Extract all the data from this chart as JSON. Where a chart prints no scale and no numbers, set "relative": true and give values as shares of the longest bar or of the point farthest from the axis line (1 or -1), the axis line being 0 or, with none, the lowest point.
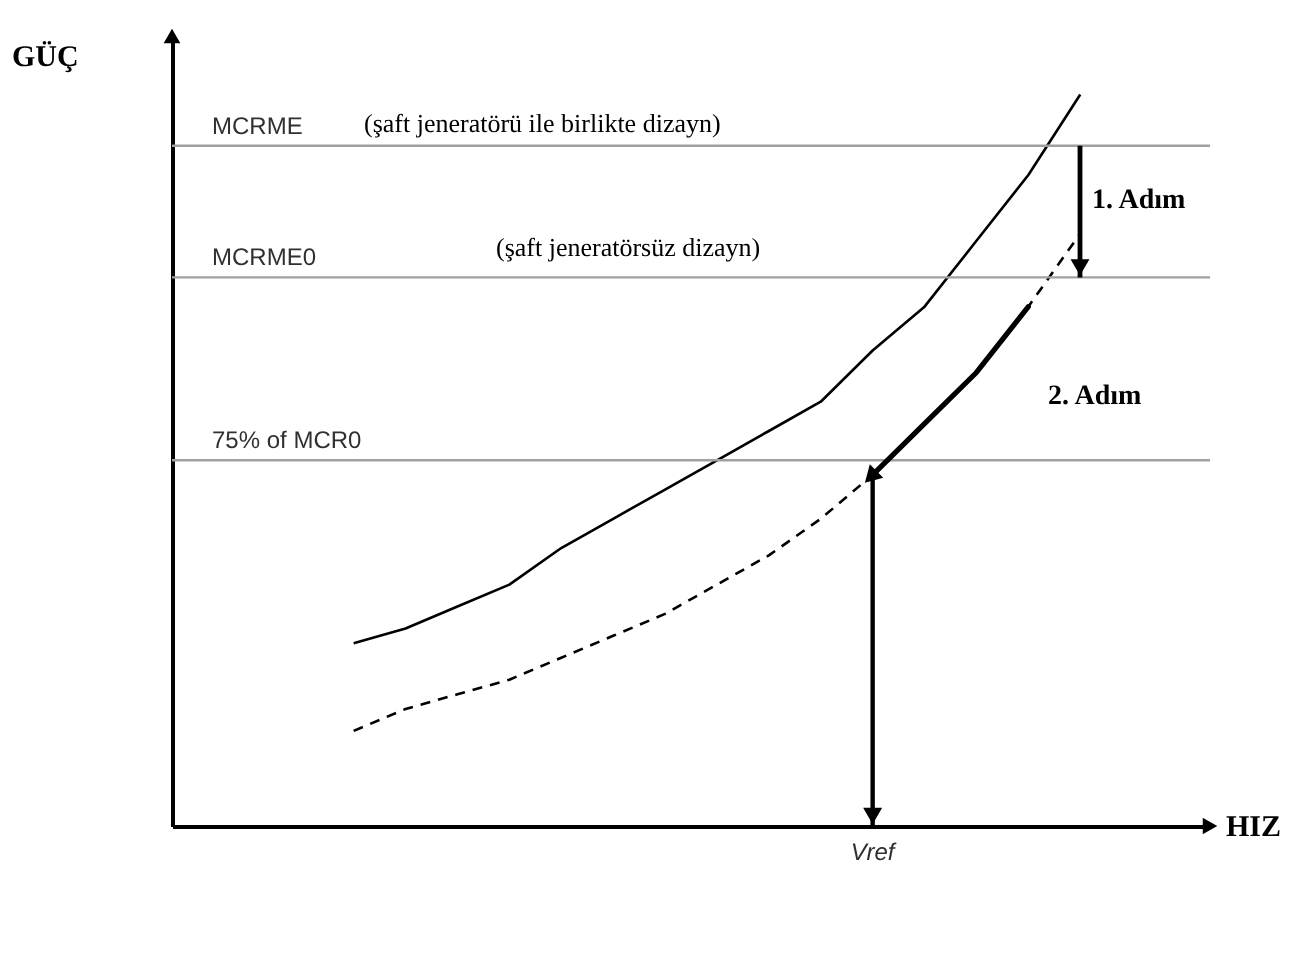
{
  "chart_data": {
    "type": "line",
    "relative": true,
    "xlabel": "HIZ",
    "ylabel": "GÜÇ",
    "categories": [
      null,
      null,
      null,
      null,
      null,
      null,
      null,
      null,
      null,
      null,
      null,
      null,
      null,
      null,
      null,
      null,
      null,
      null,
      null,
      null
    ],
    "series": [
      {
        "color": "#000000",
        "line_style": "solid",
        "values": [
          null,
          null,
          null,
          0.25,
          0.27,
          0.3,
          0.33,
          0.38,
          0.42,
          0.46,
          0.5,
          0.54,
          0.58,
          0.65,
          0.71,
          0.8,
          0.89,
          1.0,
          null,
          null
        ]
      },
      {
        "color": "#000000",
        "line_style": "dashed",
        "values": [
          null,
          null,
          null,
          0.13,
          0.16,
          0.18,
          0.2,
          0.23,
          0.26,
          0.29,
          0.33,
          0.37,
          0.42,
          0.48,
          0.55,
          0.62,
          0.71,
          0.81,
          null,
          null
        ]
      }
    ],
    "ref_lines": [
      {
        "axis": "y",
        "value": 0.93,
        "label": "MCRME",
        "color": "#a0a0a0"
      },
      {
        "axis": "y",
        "value": 0.75,
        "label": "MCRME0",
        "color": "#a0a0a0"
      },
      {
        "axis": "y",
        "value": 0.5,
        "label": "75% of MCR0",
        "color": "#a0a0a0"
      }
    ],
    "annotations": [
      "(şaft jeneratörü ile birlikte dizayn)",
      "(şaft jeneratörsüz dizayn)",
      "1. Adım",
      "2. Adım",
      "Vref"
    ]
  }
}
